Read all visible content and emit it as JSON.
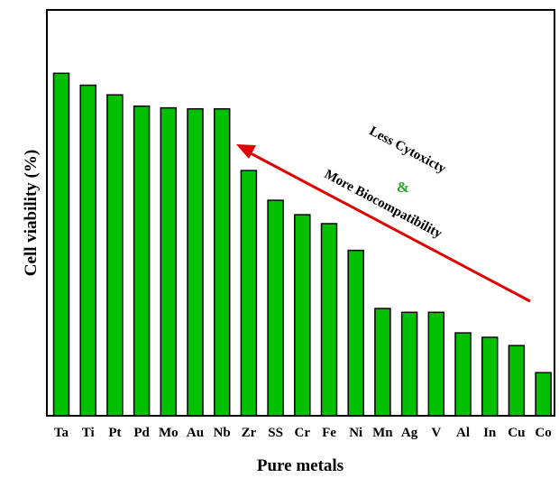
{
  "chart_data": {
    "type": "bar",
    "xlabel": "Pure metals",
    "ylabel": "Cell viability (%)",
    "categories": [
      "Ta",
      "Ti",
      "Pt",
      "Pd",
      "Mo",
      "Au",
      "Nb",
      "Zr",
      "SS",
      "Cr",
      "Fe",
      "Ni",
      "Mn",
      "Ag",
      "V",
      "Al",
      "In",
      "Cu",
      "Co"
    ],
    "values": [
      100,
      96.5,
      93.7,
      90.4,
      89.9,
      89.6,
      89.6,
      71.6,
      62.9,
      58.7,
      56.1,
      48.3,
      31.3,
      30.2,
      30.2,
      24.2,
      22.9,
      20.5,
      12.6
    ],
    "ylim": [
      0,
      118.5
    ],
    "bar_color": "#00c000",
    "bar_edge_color": "#000000",
    "y_ticks_shown": false,
    "annotations": {
      "line1": "Less Cytoxicty",
      "amp": "&",
      "line2": "More Biocompatibility",
      "amp_color": "#22aa22",
      "arrow_color": "#e00000"
    }
  }
}
